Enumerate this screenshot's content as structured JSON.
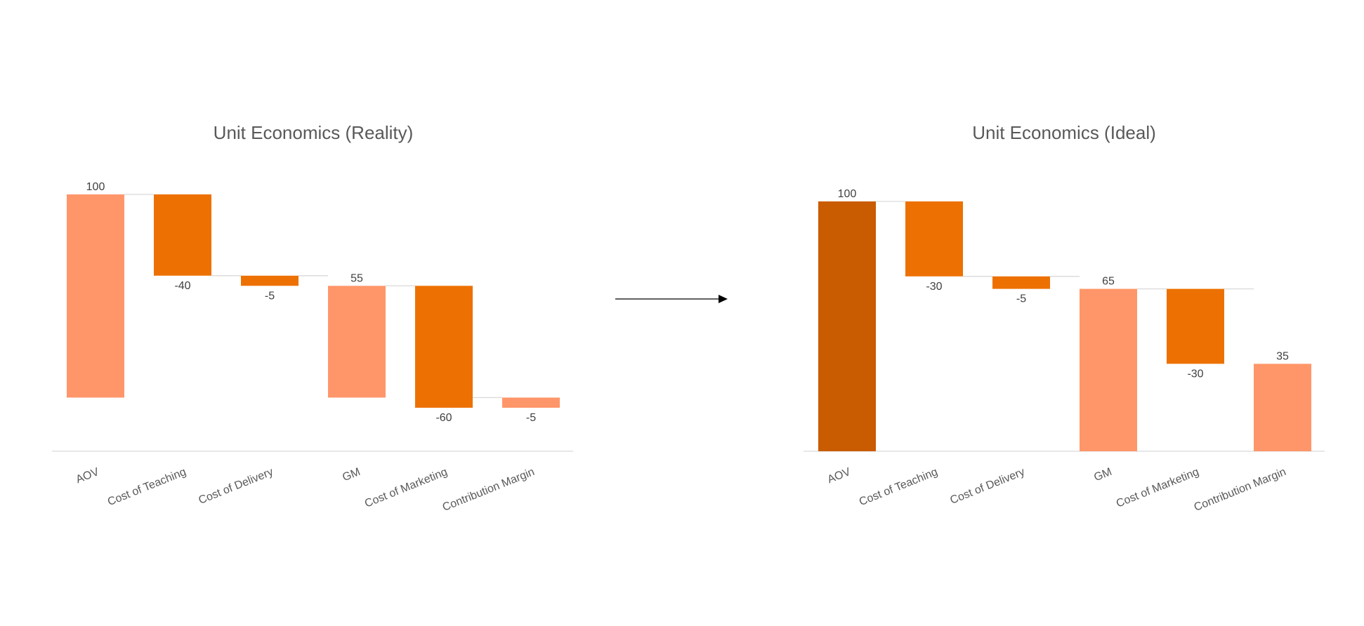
{
  "colors": {
    "increase": "#FF9669",
    "decrease": "#ED7102",
    "total": "#C95C01",
    "axis": "#D9D9D9",
    "connector": "#D9D9D9",
    "text": "#595959",
    "arrow": "#000000"
  },
  "chart_data": [
    {
      "type": "waterfall",
      "title": "Unit Economics (Reality)",
      "categories": [
        "AOV",
        "Cost of Teaching",
        "Cost of Delivery",
        "GM",
        "Cost of Marketing",
        "Contribution Margin"
      ],
      "values": [
        100,
        -40,
        -5,
        55,
        -60,
        -5
      ],
      "labels": [
        "100",
        "-40",
        "-5",
        "55",
        "-60",
        "-5"
      ],
      "kinds": [
        "increase",
        "decrease",
        "decrease",
        "increase",
        "decrease",
        "increase"
      ],
      "xlabel": "",
      "ylabel": "",
      "grid": false,
      "legend": false
    },
    {
      "type": "waterfall",
      "title": "Unit Economics (Ideal)",
      "categories": [
        "AOV",
        "Cost of Teaching",
        "Cost of Delivery",
        "GM",
        "Cost of Marketing",
        "Contribution Margin"
      ],
      "values": [
        100,
        -30,
        -5,
        65,
        -30,
        35
      ],
      "labels": [
        "100",
        "-30",
        "-5",
        "65",
        "-30",
        "35"
      ],
      "kinds": [
        "total",
        "decrease",
        "decrease",
        "increase",
        "decrease",
        "increase"
      ],
      "xlabel": "",
      "ylabel": "",
      "grid": false,
      "legend": false
    }
  ]
}
